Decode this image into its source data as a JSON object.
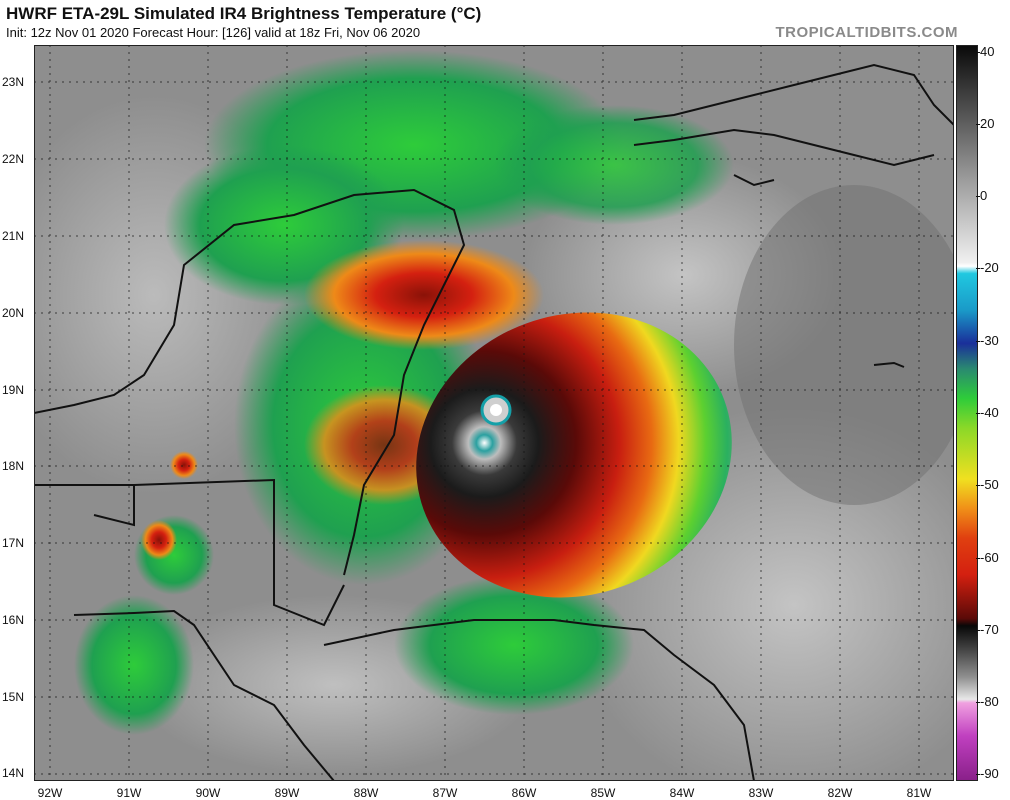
{
  "header": {
    "title": "HWRF ETA-29L Simulated IR4 Brightness Temperature (°C)",
    "subtitle": "Init: 12z Nov 01 2020   Forecast Hour: [126]   valid at 18z Fri, Nov 06 2020",
    "brand": "TROPICALTIDBITS.COM"
  },
  "map": {
    "lat_labels": [
      "23N",
      "22N",
      "21N",
      "20N",
      "19N",
      "18N",
      "17N",
      "16N",
      "15N",
      "14N"
    ],
    "lon_labels": [
      "92W",
      "91W",
      "90W",
      "89W",
      "88W",
      "87W",
      "86W",
      "85W",
      "84W",
      "83W",
      "82W",
      "81W"
    ]
  },
  "colorbar": {
    "ticks": [
      "40",
      "20",
      "0",
      "-20",
      "-30",
      "-40",
      "-50",
      "-60",
      "-70",
      "-80",
      "-90"
    ],
    "colors": {
      "warm": "#1a1a1a",
      "gray": "#9a9a9a",
      "cyan": "#20b8d8",
      "blue": "#1a2f9a",
      "green": "#2ecc3a",
      "yellow": "#f0e020",
      "red": "#d42010",
      "darkred": "#5a0a08",
      "black": "#080808",
      "white": "#f0f0f0",
      "magenta": "#c040c0"
    }
  }
}
